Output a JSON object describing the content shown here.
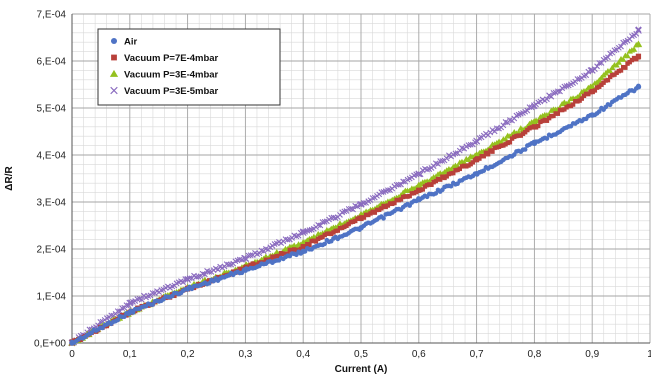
{
  "chart_data": {
    "type": "scatter",
    "xlabel": "Current (A)",
    "ylabel": "ΔR/R",
    "xlim": [
      0,
      1
    ],
    "ylim": [
      0,
      0.0007
    ],
    "x_ticks": [
      0,
      0.1,
      0.2,
      0.3,
      0.4,
      0.5,
      0.6,
      0.7,
      0.8,
      0.9,
      1
    ],
    "x_tick_labels": [
      "0",
      "0,1",
      "0,2",
      "0,3",
      "0,4",
      "0,5",
      "0,6",
      "0,7",
      "0,8",
      "0,9",
      "1"
    ],
    "y_ticks": [
      0,
      0.0001,
      0.0002,
      0.0003,
      0.0004,
      0.0005,
      0.0006,
      0.0007
    ],
    "y_tick_labels": [
      "0,E+00",
      "1,E-04",
      "2,E-04",
      "3,E-04",
      "4,E-04",
      "5,E-04",
      "6,E-04",
      "7,E-04"
    ],
    "grid": true,
    "legend_position": "top-left",
    "series": [
      {
        "name": "Air",
        "color": "#4f73c5",
        "marker": "circle",
        "x": [
          0,
          0.1,
          0.2,
          0.3,
          0.4,
          0.5,
          0.6,
          0.7,
          0.8,
          0.9,
          0.98
        ],
        "y": [
          0.0,
          6.5e-05,
          0.000115,
          0.000155,
          0.000195,
          0.000245,
          0.000305,
          0.00036,
          0.000425,
          0.000485,
          0.000545
        ]
      },
      {
        "name": "Vacuum P=7E-4mbar",
        "color": "#b8403a",
        "marker": "square",
        "x": [
          0,
          0.1,
          0.2,
          0.3,
          0.4,
          0.5,
          0.6,
          0.7,
          0.8,
          0.9,
          0.98
        ],
        "y": [
          0.0,
          6.5e-05,
          0.000115,
          0.00016,
          0.000205,
          0.000265,
          0.000325,
          0.00039,
          0.00046,
          0.000535,
          0.00061
        ]
      },
      {
        "name": "Vacuum P=3E-4mbar",
        "color": "#95c11f",
        "marker": "triangle",
        "x": [
          0,
          0.1,
          0.2,
          0.3,
          0.4,
          0.5,
          0.6,
          0.7,
          0.8,
          0.9,
          0.98
        ],
        "y": [
          0.0,
          6.5e-05,
          0.000118,
          0.000163,
          0.000213,
          0.000273,
          0.000335,
          0.0004,
          0.00047,
          0.000545,
          0.000635
        ]
      },
      {
        "name": "Vacuum P=3E-5mbar",
        "color": "#8a6bbf",
        "marker": "cross",
        "x": [
          0,
          0.1,
          0.2,
          0.3,
          0.4,
          0.5,
          0.6,
          0.7,
          0.8,
          0.9,
          0.98
        ],
        "y": [
          0.0,
          8.5e-05,
          0.000135,
          0.00018,
          0.000235,
          0.000295,
          0.00036,
          0.00043,
          0.000505,
          0.00058,
          0.000665
        ]
      }
    ]
  }
}
